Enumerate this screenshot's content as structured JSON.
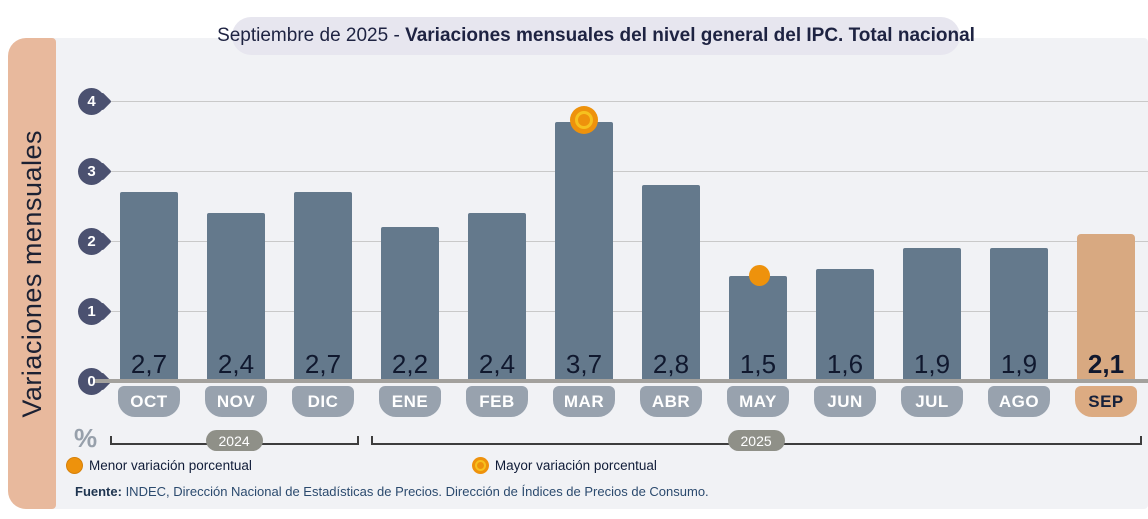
{
  "title": {
    "prefix": "Septiembre de 2025 - ",
    "main": "Variaciones mensuales del nivel general del IPC. Total nacional"
  },
  "y_axis_label": "Variaciones mensuales",
  "unit_label": "%",
  "chart_data": {
    "type": "bar",
    "categories": [
      "OCT",
      "NOV",
      "DIC",
      "ENE",
      "FEB",
      "MAR",
      "ABR",
      "MAY",
      "JUN",
      "JUL",
      "AGO",
      "SEP"
    ],
    "values": [
      2.7,
      2.4,
      2.7,
      2.2,
      2.4,
      3.7,
      2.8,
      1.5,
      1.6,
      1.9,
      1.9,
      2.1
    ],
    "value_labels": [
      "2,7",
      "2,4",
      "2,7",
      "2,2",
      "2,4",
      "3,7",
      "2,8",
      "1,5",
      "1,6",
      "1,9",
      "1,9",
      "2,1"
    ],
    "title": "Septiembre de 2025 - Variaciones mensuales del nivel general del IPC. Total nacional",
    "ylabel": "Variaciones mensuales",
    "xlabel": "",
    "ylim": [
      0,
      4
    ],
    "yticks": [
      0,
      1,
      2,
      3,
      4
    ],
    "grid": true,
    "highlight_index": 11,
    "max_marker": {
      "category": "MAR",
      "index": 5,
      "value": 3.7
    },
    "min_marker": {
      "category": "MAY",
      "index": 7,
      "value": 1.5
    },
    "year_groups": [
      {
        "label": "2024",
        "from_index": 0,
        "to_index": 2
      },
      {
        "label": "2025",
        "from_index": 3,
        "to_index": 11
      }
    ]
  },
  "legend": [
    {
      "label": "Menor variación porcentual",
      "marker": "solid-orange-dot"
    },
    {
      "label": "Mayor variación porcentual",
      "marker": "ringed-orange-dot"
    }
  ],
  "source": {
    "label": "Fuente:",
    "text": " INDEC, Dirección Nacional de Estadísticas de Precios. Dirección de Índices de Precios de Consumo."
  },
  "colors": {
    "panel_bg": "#f1f2f5",
    "title_pill_bg": "#e7e6ef",
    "bar": "#64798c",
    "highlight_bar": "#d8a981",
    "sidebar": "#e8b99d",
    "tick_marker": "#4b5170",
    "month_pill": "#98a2ae",
    "year_pill": "#8f9088",
    "orange": "#ee920c",
    "gold_ring": "#f6c11e",
    "navy_text": "#1e2342"
  }
}
